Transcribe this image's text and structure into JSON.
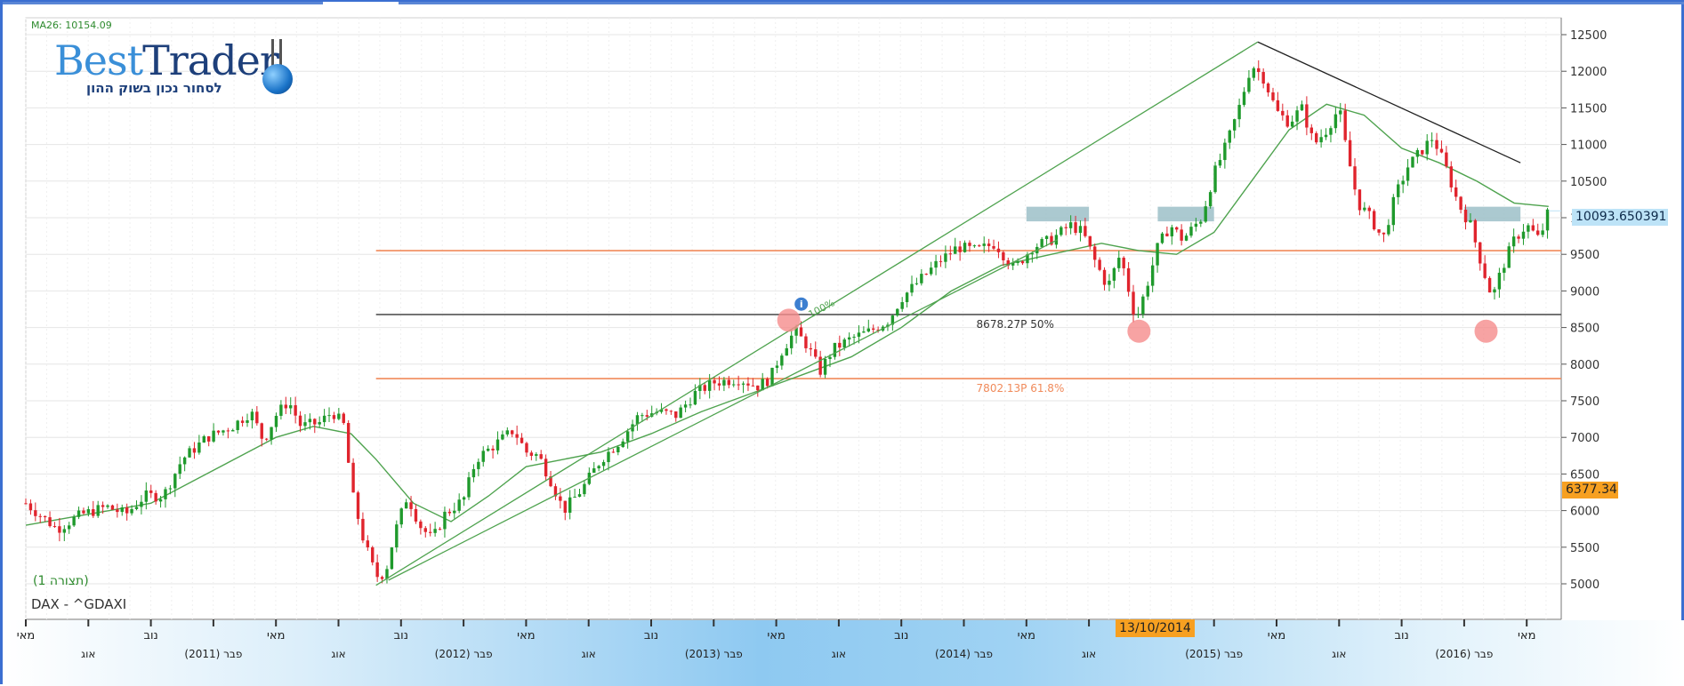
{
  "indicator": {
    "ma_label": "MA26: 10154.09"
  },
  "logo": {
    "brand": "BestTrader",
    "brand_first": "Best",
    "brand_second": "Trader",
    "tagline": "לסחור נכון בשוק ההון"
  },
  "view_label": "(תצורה 1)",
  "symbol_label": "DAX - ^GDAXI",
  "current_price_label": "10093.650391",
  "low_price_label": "6377.34",
  "cursor_date_label": "13/10/2014",
  "colors": {
    "up_candle": "#1f9a2c",
    "down_candle": "#e0242d",
    "ma_line": "#4fa34f",
    "trend_channel": "#4fa34f",
    "downtrend": "#222222",
    "fib_orange": "#f08a5a",
    "fib_black": "#555555",
    "support_circle": "#f58c8c",
    "resistance_box": "#9cc0c8",
    "price_box": "#bde3f7",
    "highlight_box": "#f7a021",
    "grid": "#e6e6e6"
  },
  "chart_data": {
    "type": "candlestick",
    "title": "DAX - ^GDAXI",
    "period": "weekly",
    "y_axis": {
      "position": "right",
      "range": [
        4600,
        12600
      ],
      "ticks": [
        5000,
        5500,
        6000,
        6500,
        7000,
        7500,
        8000,
        8500,
        9000,
        9500,
        10000,
        10500,
        11000,
        11500,
        12000,
        12500
      ]
    },
    "x_axis": {
      "top_row": [
        {
          "label": "מאי",
          "t": 0.0
        },
        {
          "label": "נוב",
          "t": 2.0
        },
        {
          "label": "מאי",
          "t": 4.0
        },
        {
          "label": "נוב",
          "t": 6.0
        },
        {
          "label": "מאי",
          "t": 8.0
        },
        {
          "label": "נוב",
          "t": 10.0
        },
        {
          "label": "מאי",
          "t": 12.0
        },
        {
          "label": "נוב",
          "t": 14.0
        },
        {
          "label": "מאי",
          "t": 16.0
        },
        {
          "label": "13/10/2014",
          "t": 17.75
        },
        {
          "label": "מאי",
          "t": 20.0
        },
        {
          "label": "נוב",
          "t": 22.0
        },
        {
          "label": "מאי",
          "t": 24.0
        }
      ],
      "bottom_row": [
        {
          "label": "אוג",
          "t": 1.0
        },
        {
          "label": "פבר (2011)",
          "t": 3.0
        },
        {
          "label": "אוג",
          "t": 5.0
        },
        {
          "label": "פבר (2012)",
          "t": 7.0
        },
        {
          "label": "אוג",
          "t": 9.0
        },
        {
          "label": "פבר (2013)",
          "t": 11.0
        },
        {
          "label": "אוג",
          "t": 13.0
        },
        {
          "label": "פבר (2014)",
          "t": 15.0
        },
        {
          "label": "אוג",
          "t": 17.0
        },
        {
          "label": "פבר (2015)",
          "t": 19.0
        },
        {
          "label": "אוג",
          "t": 21.0
        },
        {
          "label": "פבר (2016)",
          "t": 23.0
        }
      ]
    },
    "close_series": [
      {
        "t": 0.0,
        "close": 6100
      },
      {
        "t": 0.5,
        "close": 5750
      },
      {
        "t": 0.9,
        "close": 5950
      },
      {
        "t": 1.3,
        "close": 6050
      },
      {
        "t": 1.6,
        "close": 5950
      },
      {
        "t": 1.9,
        "close": 6200
      },
      {
        "t": 2.2,
        "close": 6200
      },
      {
        "t": 2.5,
        "close": 6700
      },
      {
        "t": 2.9,
        "close": 7000
      },
      {
        "t": 3.3,
        "close": 7150
      },
      {
        "t": 3.6,
        "close": 7350
      },
      {
        "t": 3.8,
        "close": 6950
      },
      {
        "t": 4.0,
        "close": 7300
      },
      {
        "t": 4.2,
        "close": 7500
      },
      {
        "t": 4.4,
        "close": 7150
      },
      {
        "t": 4.7,
        "close": 7200
      },
      {
        "t": 4.9,
        "close": 7350
      },
      {
        "t": 5.1,
        "close": 7150
      },
      {
        "t": 5.2,
        "close": 6300
      },
      {
        "t": 5.4,
        "close": 5600
      },
      {
        "t": 5.6,
        "close": 5100
      },
      {
        "t": 5.75,
        "close": 5150
      },
      {
        "t": 5.9,
        "close": 5700
      },
      {
        "t": 6.1,
        "close": 6200
      },
      {
        "t": 6.3,
        "close": 5800
      },
      {
        "t": 6.5,
        "close": 5600
      },
      {
        "t": 6.7,
        "close": 5950
      },
      {
        "t": 7.0,
        "close": 6150
      },
      {
        "t": 7.2,
        "close": 6700
      },
      {
        "t": 7.5,
        "close": 6900
      },
      {
        "t": 7.8,
        "close": 7100
      },
      {
        "t": 8.0,
        "close": 6800
      },
      {
        "t": 8.2,
        "close": 6750
      },
      {
        "t": 8.4,
        "close": 6400
      },
      {
        "t": 8.6,
        "close": 6000
      },
      {
        "t": 8.9,
        "close": 6300
      },
      {
        "t": 9.2,
        "close": 6700
      },
      {
        "t": 9.5,
        "close": 6950
      },
      {
        "t": 9.8,
        "close": 7300
      },
      {
        "t": 10.1,
        "close": 7350
      },
      {
        "t": 10.4,
        "close": 7300
      },
      {
        "t": 10.7,
        "close": 7600
      },
      {
        "t": 11.0,
        "close": 7750
      },
      {
        "t": 11.4,
        "close": 7800
      },
      {
        "t": 11.7,
        "close": 7700
      },
      {
        "t": 11.9,
        "close": 7800
      },
      {
        "t": 12.1,
        "close": 8200
      },
      {
        "t": 12.3,
        "close": 8450
      },
      {
        "t": 12.5,
        "close": 8250
      },
      {
        "t": 12.7,
        "close": 7900
      },
      {
        "t": 12.9,
        "close": 8200
      },
      {
        "t": 13.2,
        "close": 8350
      },
      {
        "t": 13.5,
        "close": 8450
      },
      {
        "t": 13.8,
        "close": 8600
      },
      {
        "t": 14.0,
        "close": 8900
      },
      {
        "t": 14.3,
        "close": 9150
      },
      {
        "t": 14.6,
        "close": 9400
      },
      {
        "t": 14.9,
        "close": 9600
      },
      {
        "t": 15.2,
        "close": 9550
      },
      {
        "t": 15.5,
        "close": 9650
      },
      {
        "t": 15.8,
        "close": 9300
      },
      {
        "t": 16.1,
        "close": 9600
      },
      {
        "t": 16.4,
        "close": 9700
      },
      {
        "t": 16.7,
        "close": 9900
      },
      {
        "t": 16.9,
        "close": 9800
      },
      {
        "t": 17.1,
        "close": 9400
      },
      {
        "t": 17.3,
        "close": 9050
      },
      {
        "t": 17.5,
        "close": 9500
      },
      {
        "t": 17.75,
        "close": 8600
      },
      {
        "t": 17.9,
        "close": 9000
      },
      {
        "t": 18.1,
        "close": 9600
      },
      {
        "t": 18.3,
        "close": 9900
      },
      {
        "t": 18.5,
        "close": 9700
      },
      {
        "t": 18.8,
        "close": 10000
      },
      {
        "t": 19.0,
        "close": 10600
      },
      {
        "t": 19.2,
        "close": 11000
      },
      {
        "t": 19.4,
        "close": 11500
      },
      {
        "t": 19.6,
        "close": 12100
      },
      {
        "t": 19.8,
        "close": 11900
      },
      {
        "t": 20.0,
        "close": 11450
      },
      {
        "t": 20.2,
        "close": 11300
      },
      {
        "t": 20.4,
        "close": 11500
      },
      {
        "t": 20.6,
        "close": 11000
      },
      {
        "t": 20.8,
        "close": 11200
      },
      {
        "t": 21.0,
        "close": 11500
      },
      {
        "t": 21.1,
        "close": 11000
      },
      {
        "t": 21.3,
        "close": 10200
      },
      {
        "t": 21.5,
        "close": 10000
      },
      {
        "t": 21.7,
        "close": 9700
      },
      {
        "t": 21.9,
        "close": 10300
      },
      {
        "t": 22.1,
        "close": 10700
      },
      {
        "t": 22.3,
        "close": 10900
      },
      {
        "t": 22.5,
        "close": 11100
      },
      {
        "t": 22.7,
        "close": 10700
      },
      {
        "t": 22.9,
        "close": 10200
      },
      {
        "t": 23.1,
        "close": 9900
      },
      {
        "t": 23.3,
        "close": 9300
      },
      {
        "t": 23.45,
        "close": 8900
      },
      {
        "t": 23.6,
        "close": 9300
      },
      {
        "t": 23.8,
        "close": 9700
      },
      {
        "t": 24.0,
        "close": 9900
      },
      {
        "t": 24.2,
        "close": 9700
      },
      {
        "t": 24.35,
        "close": 10093.65
      }
    ],
    "ma26": [
      {
        "t": 0.0,
        "close": 5800
      },
      {
        "t": 1.0,
        "close": 5950
      },
      {
        "t": 2.0,
        "close": 6100
      },
      {
        "t": 3.0,
        "close": 6550
      },
      {
        "t": 4.0,
        "close": 7000
      },
      {
        "t": 4.6,
        "close": 7150
      },
      {
        "t": 5.2,
        "close": 7050
      },
      {
        "t": 5.6,
        "close": 6700
      },
      {
        "t": 6.2,
        "close": 6100
      },
      {
        "t": 6.8,
        "close": 5850
      },
      {
        "t": 7.4,
        "close": 6200
      },
      {
        "t": 8.0,
        "close": 6600
      },
      {
        "t": 8.6,
        "close": 6700
      },
      {
        "t": 9.2,
        "close": 6800
      },
      {
        "t": 10.0,
        "close": 7050
      },
      {
        "t": 10.8,
        "close": 7350
      },
      {
        "t": 11.6,
        "close": 7600
      },
      {
        "t": 12.4,
        "close": 7850
      },
      {
        "t": 13.2,
        "close": 8100
      },
      {
        "t": 14.0,
        "close": 8500
      },
      {
        "t": 14.8,
        "close": 9000
      },
      {
        "t": 15.6,
        "close": 9350
      },
      {
        "t": 16.4,
        "close": 9500
      },
      {
        "t": 17.2,
        "close": 9650
      },
      {
        "t": 17.8,
        "close": 9550
      },
      {
        "t": 18.4,
        "close": 9500
      },
      {
        "t": 19.0,
        "close": 9800
      },
      {
        "t": 19.6,
        "close": 10500
      },
      {
        "t": 20.2,
        "close": 11200
      },
      {
        "t": 20.8,
        "close": 11550
      },
      {
        "t": 21.4,
        "close": 11400
      },
      {
        "t": 22.0,
        "close": 10950
      },
      {
        "t": 22.6,
        "close": 10750
      },
      {
        "t": 23.2,
        "close": 10500
      },
      {
        "t": 23.8,
        "close": 10200
      },
      {
        "t": 24.35,
        "close": 10154.09
      }
    ],
    "fibonacci_levels": [
      {
        "price": 9550,
        "label": "",
        "color": "#f08a5a"
      },
      {
        "price": 8678.27,
        "label": "8678.27P  50%",
        "color": "#555555"
      },
      {
        "price": 7802.13,
        "label": "7802.13P  61.8%",
        "color": "#f08a5a"
      }
    ],
    "fib_start_t": 5.6,
    "fib_100_label": "100%",
    "trendlines": [
      {
        "kind": "uptrend",
        "from": {
          "t": 5.6,
          "price": 4980
        },
        "to": {
          "t": 19.7,
          "price": 12400
        }
      },
      {
        "kind": "uptrend_lower",
        "from": {
          "t": 5.8,
          "price": 5050
        },
        "to": {
          "t": 16.5,
          "price": 9700
        }
      },
      {
        "kind": "downtrend",
        "from": {
          "t": 19.7,
          "price": 12400
        },
        "to": {
          "t": 23.9,
          "price": 10750
        }
      }
    ],
    "support_circles": [
      {
        "t": 12.2,
        "price": 8600
      },
      {
        "t": 17.8,
        "price": 8450
      },
      {
        "t": 23.35,
        "price": 8450
      }
    ],
    "resistance_boxes": [
      {
        "t_from": 16.0,
        "t_to": 17.0,
        "price_low": 9950,
        "price_high": 10150
      },
      {
        "t_from": 18.1,
        "t_to": 19.0,
        "price_low": 9950,
        "price_high": 10150
      },
      {
        "t_from": 23.0,
        "t_to": 23.9,
        "price_low": 9950,
        "price_high": 10150
      }
    ],
    "info_marker": {
      "t": 12.4,
      "price": 8820
    }
  }
}
